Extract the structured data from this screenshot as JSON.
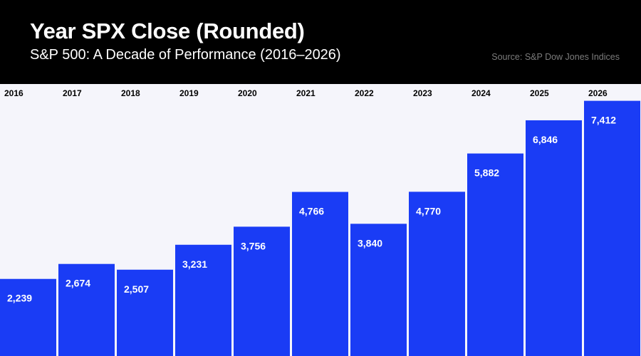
{
  "header": {
    "title": "Year SPX Close (Rounded)",
    "subtitle": "S&P 500: A Decade of Performance (2016–2026)",
    "source": "Source: S&P Dow Jones Indices"
  },
  "colors": {
    "header_background": "#000000",
    "plot_background": "#f5f5fb",
    "bar": "#1a3cf5",
    "value_label": "#ffffff",
    "year_label": "#000000"
  },
  "chart_data": {
    "type": "bar",
    "title": "Year SPX Close (Rounded)",
    "subtitle": "S&P 500: A Decade of Performance (2016–2026)",
    "categories": [
      "2016",
      "2017",
      "2018",
      "2019",
      "2020",
      "2021",
      "2022",
      "2023",
      "2024",
      "2025",
      "2026"
    ],
    "values": [
      2239,
      2674,
      2507,
      3231,
      3756,
      4766,
      3840,
      4770,
      5882,
      6846,
      7412
    ],
    "value_labels": [
      "2,239",
      "2,674",
      "2,507",
      "3,231",
      "3,756",
      "4,766",
      "3,840",
      "4,770",
      "5,882",
      "6,846",
      "7,412"
    ],
    "xlabel": "",
    "ylabel": "",
    "ylim": [
      0,
      7900
    ],
    "grid": false,
    "legend": "none",
    "category_labels_position": "top"
  }
}
